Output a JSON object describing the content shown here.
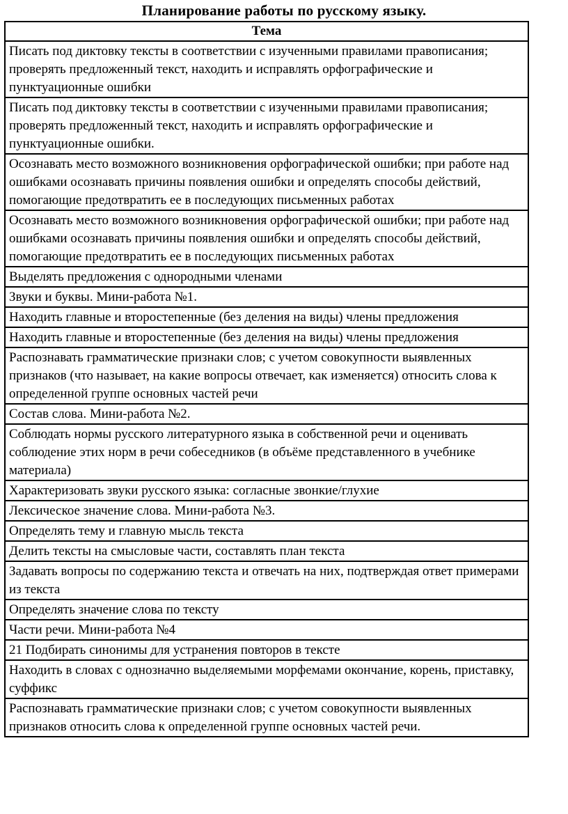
{
  "page": {
    "title": "Планирование работы по русскому языку."
  },
  "table": {
    "header": "Тема",
    "rows": [
      "Писать под диктовку тексты в соответствии с изученными правилами правописания; проверять предложенный текст, находить и исправлять орфографические и пунктуационные ошибки",
      "Писать под диктовку тексты в соответствии с изученными правилами правописания; проверять предложенный текст, находить и исправлять орфографические и пунктуационные ошибки.",
      "Осознавать место возможного возникновения орфографической ошибки; при работе над ошибками осознавать причины появления ошибки и определять способы действий, помогающие предотвратить ее в последующих письменных работах",
      "Осознавать место возможного возникновения орфографической ошибки; при работе над ошибками осознавать причины появления ошибки и определять способы действий, помогающие предотвратить ее в последующих письменных работах",
      "Выделять предложения с однородными членами",
      "Звуки и буквы. Мини-работа №1.",
      "Находить главные и второстепенные (без деления на виды) члены предложения",
      "Находить главные и второстепенные (без деления на виды) члены предложения",
      "Распознавать грамматические признаки слов; с учетом совокупности выявленных признаков (что называет, на какие вопросы отвечает, как изменяется) относить слова к определенной группе основных частей речи",
      "Состав слова. Мини-работа №2.",
      "Соблюдать нормы русского литературного языка в собственной речи и оценивать соблюдение этих норм в речи собеседников (в объёме представленного в учебнике материала)",
      "Характеризовать звуки русского языка: согласные звонкие/глухие",
      "Лексическое значение слова. Мини-работа №3.",
      "Определять тему и главную мысль текста",
      "Делить тексты на смысловые части, составлять план текста",
      "Задавать вопросы по содержанию текста и отвечать на них, подтверждая ответ примерами из текста",
      "Определять значение слова по тексту",
      "Части речи. Мини-работа №4",
      "21 Подбирать синонимы для устранения повторов в тексте",
      "Находить в словах с однозначно выделяемыми морфемами окончание, корень, приставку, суффикс",
      "Распознавать грамматические признаки слов; с учетом совокупности выявленных признаков относить слова к определенной группе основных частей речи."
    ]
  },
  "colors": {
    "text": "#000000",
    "border": "#000000",
    "background": "#ffffff"
  }
}
